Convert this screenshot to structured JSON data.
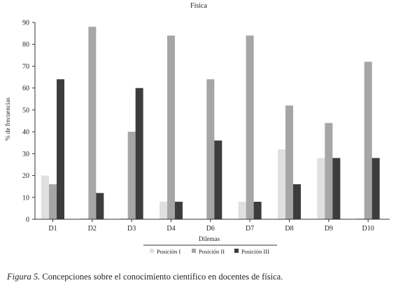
{
  "chart_data": {
    "type": "bar",
    "title": "Física",
    "xlabel": "Dilemas",
    "ylabel": "% de frecuencias",
    "ylim": [
      0,
      90
    ],
    "yticks": [
      0,
      10,
      20,
      30,
      40,
      50,
      60,
      70,
      80,
      90
    ],
    "grid": false,
    "legend_position": "bottom",
    "categories": [
      "D1",
      "D2",
      "D3",
      "D4",
      "D6",
      "D7",
      "D8",
      "D9",
      "D10"
    ],
    "series": [
      {
        "name": "Posición I",
        "color": "#e0e0e0",
        "values": [
          20,
          0.5,
          0.5,
          8,
          0,
          8,
          32,
          28,
          0.5
        ]
      },
      {
        "name": "Posición II",
        "color": "#a6a6a6",
        "values": [
          16,
          88,
          40,
          84,
          64,
          84,
          52,
          44,
          72
        ]
      },
      {
        "name": "Posición III",
        "color": "#3c3c3c",
        "values": [
          64,
          12,
          60,
          8,
          36,
          8,
          16,
          28,
          28
        ]
      }
    ]
  },
  "caption": {
    "figure_label": "Figura 5.",
    "text": " Concepciones sobre el conocimiento científico en docentes de física."
  }
}
